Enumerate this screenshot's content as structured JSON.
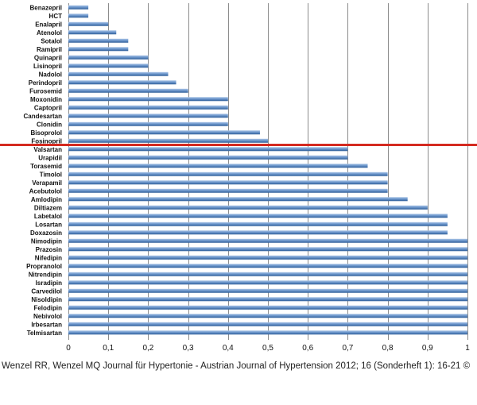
{
  "chart_data": {
    "type": "bar",
    "orientation": "horizontal",
    "categories": [
      "Benazepril",
      "HCT",
      "Enalapril",
      "Atenolol",
      "Sotalol",
      "Ramipril",
      "Quinapril",
      "Lisinopril",
      "Nadolol",
      "Perindopril",
      "Furosemid",
      "Moxonidin",
      "Captopril",
      "Candesartan",
      "Clonidin",
      "Bisoprolol",
      "Fosinopril",
      "Valsartan",
      "Urapidil",
      "Torasemid",
      "Timolol",
      "Verapamil",
      "Acebutolol",
      "Amlodipin",
      "Diltiazem",
      "Labetalol",
      "Losartan",
      "Doxazosin",
      "Nimodipin",
      "Prazosin",
      "Nifedipin",
      "Propranolol",
      "Nitrendipin",
      "Isradipin",
      "Carvedilol",
      "Nisoldipin",
      "Felodipin",
      "Nebivolol",
      "Irbesartan",
      "Telmisartan"
    ],
    "values": [
      0.05,
      0.05,
      0.1,
      0.12,
      0.15,
      0.15,
      0.2,
      0.2,
      0.25,
      0.27,
      0.3,
      0.4,
      0.4,
      0.4,
      0.4,
      0.48,
      0.5,
      0.7,
      0.7,
      0.75,
      0.8,
      0.8,
      0.8,
      0.85,
      0.9,
      0.95,
      0.95,
      0.95,
      1,
      1,
      1,
      1,
      1,
      1,
      1,
      1,
      1,
      1,
      1,
      1
    ],
    "xlim": [
      0,
      1
    ],
    "xticks": [
      "0",
      "0,1",
      "0,2",
      "0,3",
      "0,4",
      "0,5",
      "0,6",
      "0,7",
      "0,8",
      "0,9",
      "1"
    ],
    "grid": true,
    "bar_color": "#5b87c0",
    "divider": {
      "after_category": "Fosinopril",
      "color": "#d42a20"
    },
    "title": "",
    "xlabel": "",
    "ylabel": ""
  },
  "caption": "Wenzel RR, Wenzel MQ Journal für Hypertonie - Austrian Journal of Hypertension 2012; 16 (Sonderheft 1): 16-21 ©"
}
